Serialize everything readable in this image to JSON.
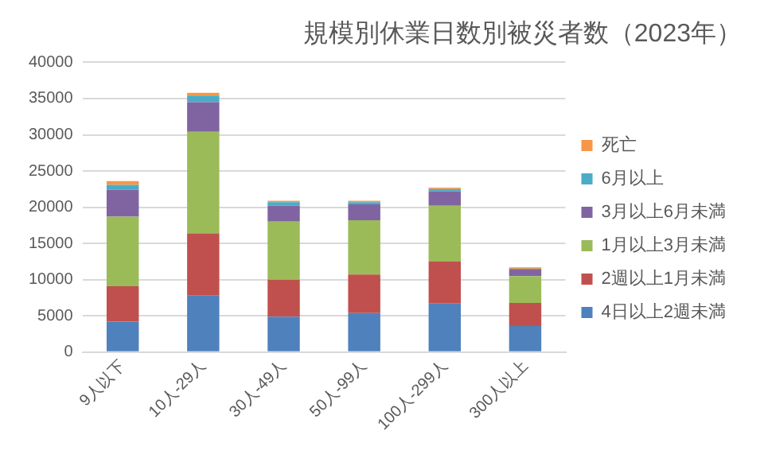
{
  "chart_data": {
    "type": "bar",
    "title": "規模別休業日数別被災者数（2023年）",
    "stacked": true,
    "categories": [
      "9人以下",
      "10人-29人",
      "30人-49人",
      "50人-99人",
      "100人-299人",
      "300人以上"
    ],
    "series": [
      {
        "name": "4日以上2週未満",
        "color": "#4f81bd",
        "values": [
          4200,
          7800,
          4900,
          5400,
          6700,
          3600
        ]
      },
      {
        "name": "2週以上1月未満",
        "color": "#c0504d",
        "values": [
          4900,
          8600,
          5100,
          5300,
          5800,
          3200
        ]
      },
      {
        "name": "1月以上3月未満",
        "color": "#9bbb59",
        "values": [
          9600,
          14000,
          8000,
          7500,
          7700,
          3700
        ]
      },
      {
        "name": "3月以上6月未満",
        "color": "#8064a2",
        "values": [
          3700,
          4100,
          2200,
          2200,
          2000,
          900
        ]
      },
      {
        "name": "6月以上",
        "color": "#4bacc6",
        "values": [
          700,
          900,
          500,
          300,
          300,
          100
        ]
      },
      {
        "name": "死亡",
        "color": "#f79646",
        "values": [
          500,
          400,
          200,
          200,
          200,
          200
        ]
      }
    ],
    "ylim": [
      0,
      40000
    ],
    "yticks": [
      0,
      5000,
      10000,
      15000,
      20000,
      25000,
      30000,
      35000,
      40000
    ],
    "grid": "y",
    "legend": "right"
  }
}
